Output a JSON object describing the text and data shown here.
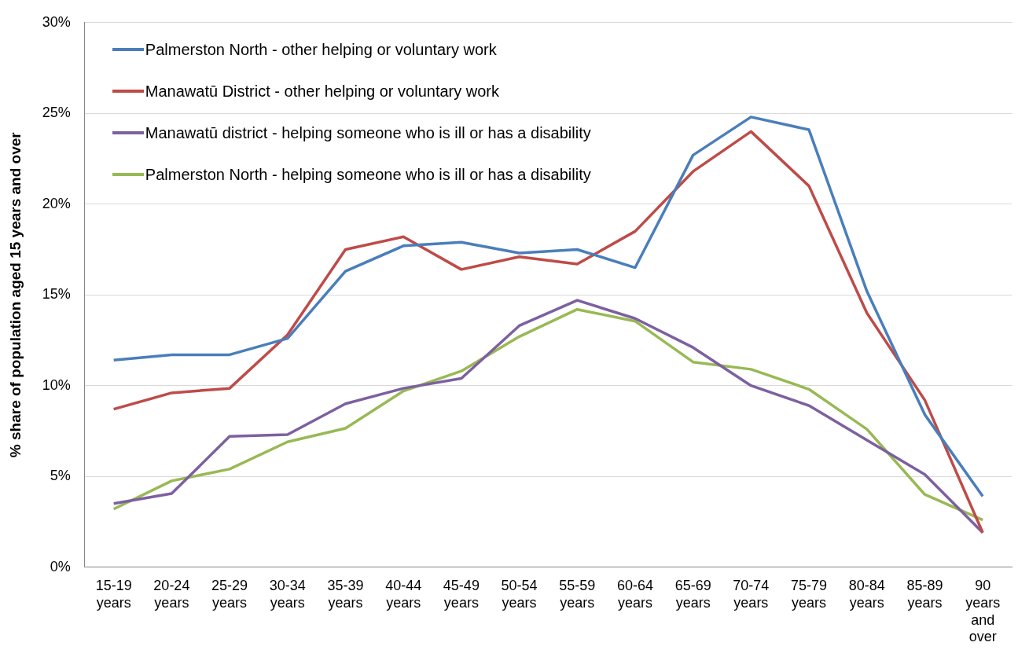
{
  "chart_data": {
    "type": "line",
    "ylabel": "% share of population aged 15 years and over",
    "categories": [
      "15-19 years",
      "20-24 years",
      "25-29 years",
      "30-34 years",
      "35-39 years",
      "40-44 years",
      "45-49 years",
      "50-54 years",
      "55-59 years",
      "60-64 years",
      "65-69 years",
      "70-74 years",
      "75-79 years",
      "80-84 years",
      "85-89 years",
      "90 years and over"
    ],
    "series": [
      {
        "name": "Palmerston North - other helping or voluntary work",
        "color": "#4a7ebb",
        "values": [
          11.4,
          11.7,
          11.7,
          12.6,
          16.3,
          17.7,
          17.9,
          17.3,
          17.5,
          16.5,
          22.7,
          24.8,
          24.1,
          15.2,
          8.4,
          3.9
        ]
      },
      {
        "name": "Manawatū District - other helping or voluntary work",
        "color": "#be4b48",
        "values": [
          8.7,
          9.6,
          9.85,
          12.8,
          17.5,
          18.2,
          16.4,
          17.1,
          16.7,
          18.5,
          21.8,
          24.0,
          21.0,
          14.0,
          9.2,
          1.9
        ]
      },
      {
        "name": "Manawatū district - helping someone who is ill or has a disability",
        "color": "#7d60a0",
        "values": [
          3.5,
          4.05,
          7.2,
          7.3,
          9.0,
          9.85,
          10.4,
          13.3,
          14.7,
          13.7,
          12.1,
          10.0,
          8.9,
          7.0,
          5.1,
          1.9
        ]
      },
      {
        "name": "Palmerston North - helping someone who is ill or has a disability",
        "color": "#98b954",
        "values": [
          3.2,
          4.75,
          5.4,
          6.9,
          7.65,
          9.7,
          10.8,
          12.7,
          14.2,
          13.55,
          11.3,
          10.9,
          9.8,
          7.6,
          4.0,
          2.6
        ]
      }
    ],
    "ylim": [
      0,
      30
    ],
    "yticks": [
      {
        "value": 0,
        "label": "0%"
      },
      {
        "value": 5,
        "label": "5%"
      },
      {
        "value": 10,
        "label": "10%"
      },
      {
        "value": 15,
        "label": "15%"
      },
      {
        "value": 20,
        "label": "20%"
      },
      {
        "value": 25,
        "label": "25%"
      },
      {
        "value": 30,
        "label": "30%"
      }
    ],
    "grid": "y",
    "legend": "top left",
    "marker": "none",
    "line_style": "solid"
  }
}
